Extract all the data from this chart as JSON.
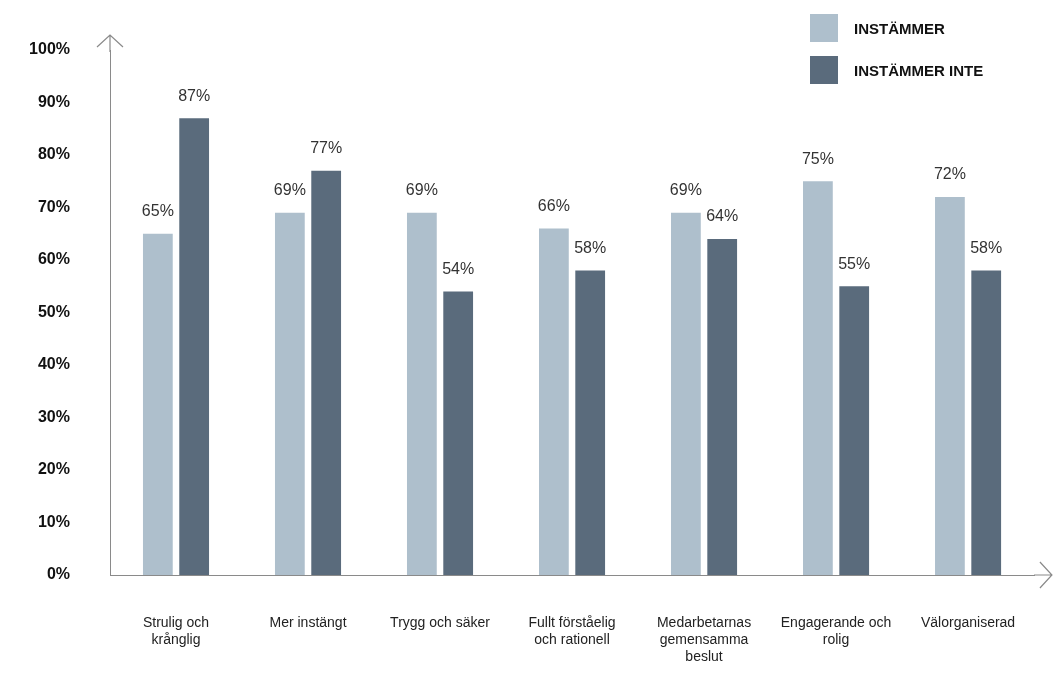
{
  "chart_data": {
    "type": "bar",
    "categories": [
      "Strulig och krånglig",
      "Mer instängt",
      "Trygg och säker",
      "Fullt förståelig och rationell",
      "Medarbetarnas gemensamma beslut",
      "Engagerande och rolig",
      "Välorganiserad"
    ],
    "series": [
      {
        "name": "INSTÄMMER",
        "color": "#aebfcc",
        "values": [
          65,
          69,
          69,
          66,
          69,
          75,
          72
        ],
        "value_labels": [
          "65%",
          "69%",
          "69%",
          "66%",
          "69%",
          "75%",
          "72%"
        ]
      },
      {
        "name": "INSTÄMMER INTE",
        "color": "#5a6b7c",
        "values": [
          87,
          77,
          54,
          58,
          64,
          55,
          58
        ],
        "value_labels": [
          "87%",
          "77%",
          "54%",
          "58%",
          "64%",
          "55%",
          "58%"
        ]
      }
    ],
    "ylim": [
      0,
      100
    ],
    "yticks": [
      {
        "value": 0,
        "label": "0%"
      },
      {
        "value": 10,
        "label": "10%"
      },
      {
        "value": 20,
        "label": "20%"
      },
      {
        "value": 30,
        "label": "30%"
      },
      {
        "value": 40,
        "label": "40%"
      },
      {
        "value": 50,
        "label": "50%"
      },
      {
        "value": 60,
        "label": "60%"
      },
      {
        "value": 70,
        "label": "70%"
      },
      {
        "value": 80,
        "label": "80%"
      },
      {
        "value": 90,
        "label": "90%"
      },
      {
        "value": 100,
        "label": "100%"
      }
    ],
    "grid": false,
    "legend": "top right"
  }
}
